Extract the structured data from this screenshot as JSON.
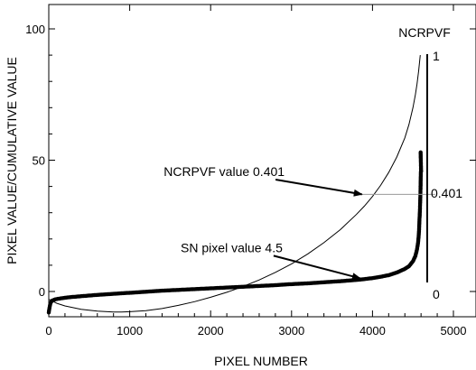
{
  "chart_data": {
    "type": "scatter",
    "title": "",
    "xlabel": "PIXEL NUMBER",
    "ylabel": "PIXEL VALUE/CUMULATIVE VALUE",
    "xlim": [
      0,
      5000
    ],
    "ylim": [
      -8,
      110
    ],
    "x_ticks": [
      0,
      1000,
      2000,
      3000,
      4000,
      5000
    ],
    "y_ticks": [
      0,
      50,
      100
    ],
    "grid": false,
    "series": [
      {
        "name": "",
        "kind": "points",
        "points": [
          [
            0,
            -8
          ],
          [
            10,
            -6
          ],
          [
            20,
            -4.5
          ],
          [
            40,
            -3.5
          ],
          [
            80,
            -3
          ],
          [
            150,
            -2.6
          ],
          [
            250,
            -2.2
          ],
          [
            400,
            -1.8
          ],
          [
            600,
            -1.3
          ],
          [
            800,
            -0.9
          ],
          [
            1000,
            -0.5
          ],
          [
            1200,
            -0.1
          ],
          [
            1400,
            0.3
          ],
          [
            1600,
            0.6
          ],
          [
            1800,
            0.9
          ],
          [
            2000,
            1.2
          ],
          [
            2200,
            1.5
          ],
          [
            2400,
            1.8
          ],
          [
            2600,
            2.1
          ],
          [
            2800,
            2.4
          ],
          [
            3000,
            2.8
          ],
          [
            3200,
            3.1
          ],
          [
            3400,
            3.5
          ],
          [
            3600,
            3.9
          ],
          [
            3800,
            4.4
          ],
          [
            3900,
            4.7
          ],
          [
            4000,
            5.1
          ],
          [
            4100,
            5.6
          ],
          [
            4200,
            6.2
          ],
          [
            4300,
            7.2
          ],
          [
            4400,
            8.6
          ],
          [
            4450,
            9.6
          ],
          [
            4500,
            11.5
          ],
          [
            4530,
            13.5
          ],
          [
            4550,
            16
          ],
          [
            4565,
            19
          ],
          [
            4575,
            23
          ],
          [
            4580,
            27
          ],
          [
            4585,
            30
          ],
          [
            4588,
            33
          ],
          [
            4590,
            35
          ],
          [
            4592,
            37
          ],
          [
            4594,
            40
          ],
          [
            4596,
            43
          ],
          [
            4598,
            45.5
          ],
          [
            4600,
            46
          ],
          [
            4595,
            53
          ]
        ]
      },
      {
        "name": "NCRPVF",
        "kind": "line",
        "points": [
          [
            0,
            -3
          ],
          [
            100,
            -4.5
          ],
          [
            200,
            -5.5
          ],
          [
            400,
            -6.8
          ],
          [
            600,
            -7.5
          ],
          [
            800,
            -7.8
          ],
          [
            900,
            -7.8
          ],
          [
            1000,
            -7.7
          ],
          [
            1200,
            -7.3
          ],
          [
            1400,
            -6.5
          ],
          [
            1600,
            -5.3
          ],
          [
            1800,
            -3.9
          ],
          [
            2000,
            -2.2
          ],
          [
            2200,
            -0.3
          ],
          [
            2400,
            1.9
          ],
          [
            2600,
            4.4
          ],
          [
            2800,
            7.3
          ],
          [
            3000,
            10.5
          ],
          [
            3200,
            14.3
          ],
          [
            3400,
            18.6
          ],
          [
            3600,
            23.5
          ],
          [
            3800,
            29.3
          ],
          [
            3900,
            32.5
          ],
          [
            4000,
            36.2
          ],
          [
            4100,
            40.4
          ],
          [
            4200,
            45.3
          ],
          [
            4300,
            51.2
          ],
          [
            4400,
            58.5
          ],
          [
            4450,
            63.5
          ],
          [
            4500,
            70
          ],
          [
            4530,
            75
          ],
          [
            4550,
            79
          ],
          [
            4570,
            84
          ],
          [
            4590,
            90
          ]
        ]
      }
    ],
    "secondary_axis": {
      "label": "NCRPVF",
      "bottom_label": "0",
      "top_label": "1",
      "range": [
        0,
        1
      ],
      "marked_value_label": "0.401",
      "marked_value": 0.401
    },
    "annotations": [
      {
        "text": "NCRPVF value 0.401",
        "anchor_x": 3870,
        "anchor_y": 37,
        "text_x": 1420,
        "text_y": 44
      },
      {
        "text": "SN pixel value 4.5",
        "anchor_x": 3850,
        "anchor_y": 5,
        "text_x": 1630,
        "text_y": 15
      }
    ],
    "reference_line": {
      "y": 37,
      "x_start": 3870,
      "x_end": 4775
    }
  }
}
